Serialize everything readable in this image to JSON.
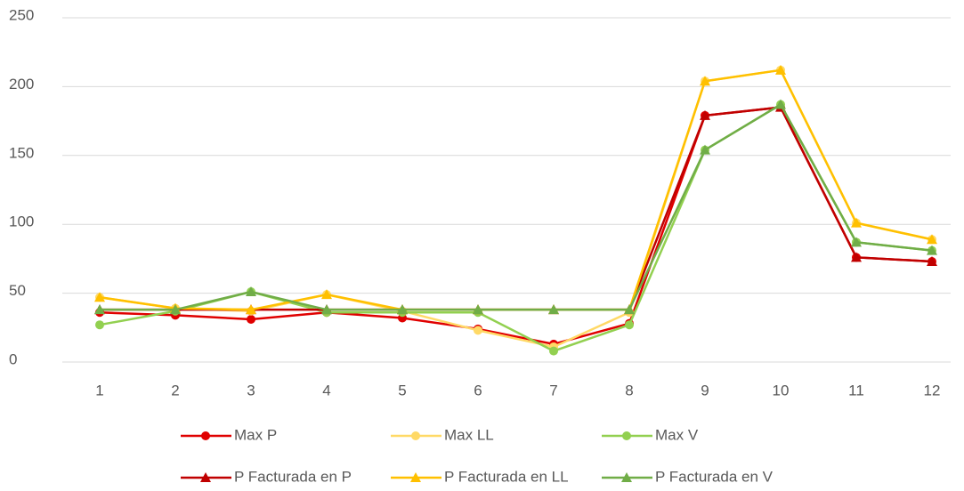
{
  "chart_data": {
    "type": "line",
    "categories": [
      "1",
      "2",
      "3",
      "4",
      "5",
      "6",
      "7",
      "8",
      "9",
      "10",
      "11",
      "12"
    ],
    "series": [
      {
        "name": "Max P",
        "color": "#e00000",
        "marker": "circle",
        "values": [
          36,
          34,
          31,
          36,
          32,
          24,
          13,
          28,
          179,
          185,
          76,
          73
        ]
      },
      {
        "name": "Max LL",
        "color": "#ffd966",
        "marker": "circle",
        "values": [
          47,
          39,
          37,
          49,
          37,
          23,
          11,
          36,
          204,
          212,
          101,
          89
        ]
      },
      {
        "name": "Max V",
        "color": "#92d050",
        "marker": "circle",
        "values": [
          27,
          37,
          51,
          36,
          36,
          36,
          8,
          27,
          154,
          187,
          87,
          81
        ]
      },
      {
        "name": "P Facturada en P",
        "color": "#c00000",
        "marker": "triangle",
        "values": [
          38,
          38,
          38,
          38,
          38,
          38,
          38,
          38,
          179,
          185,
          76,
          73
        ]
      },
      {
        "name": "P Facturada en LL",
        "color": "#ffc000",
        "marker": "triangle",
        "values": [
          47,
          39,
          38,
          49,
          38,
          38,
          38,
          38,
          204,
          212,
          101,
          89
        ]
      },
      {
        "name": "P Facturada en V",
        "color": "#70ad47",
        "marker": "triangle",
        "values": [
          38,
          38,
          51,
          38,
          38,
          38,
          38,
          38,
          154,
          187,
          87,
          81
        ]
      }
    ],
    "ylim": [
      0,
      250
    ],
    "yticks": [
      0,
      50,
      100,
      150,
      200,
      250
    ],
    "grid": true,
    "legend": "bottom"
  }
}
